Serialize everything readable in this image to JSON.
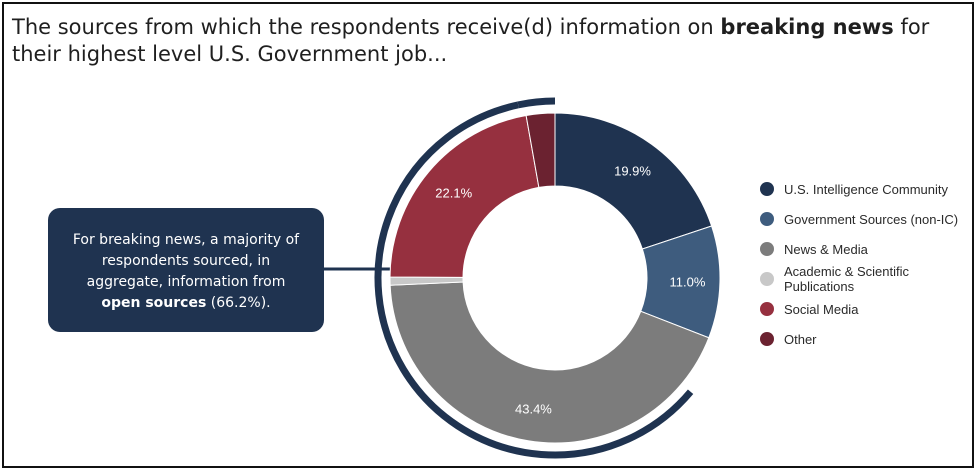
{
  "title": {
    "prefix": "The sources from which the respondents receive(d) information on ",
    "bold": "breaking news",
    "suffix": " for their highest level U.S. Government job..."
  },
  "callout": {
    "prefix": "For breaking news, a majority of respondents sourced, in aggregate, information from ",
    "bold": "open sources",
    "suffix": " (66.2%)."
  },
  "chart_data": {
    "type": "donut",
    "series": [
      {
        "name": "U.S. Intelligence Community",
        "value": 19.9,
        "label": "19.9%",
        "color": "#1f3350"
      },
      {
        "name": "Government Sources (non-IC)",
        "value": 11.0,
        "label": "11.0%",
        "color": "#3e5c7e"
      },
      {
        "name": "News & Media",
        "value": 43.4,
        "label": "43.4%",
        "color": "#7c7c7c"
      },
      {
        "name": "Academic & Scientific Publications",
        "value": 0.8,
        "label": "",
        "color": "#c8c8c8"
      },
      {
        "name": "Social Media",
        "value": 22.1,
        "label": "22.1%",
        "color": "#96303f"
      },
      {
        "name": "Other",
        "value": 2.8,
        "label": "",
        "color": "#6b2230"
      }
    ],
    "legend_position": "right",
    "open_sources_highlight": "66.2%"
  }
}
